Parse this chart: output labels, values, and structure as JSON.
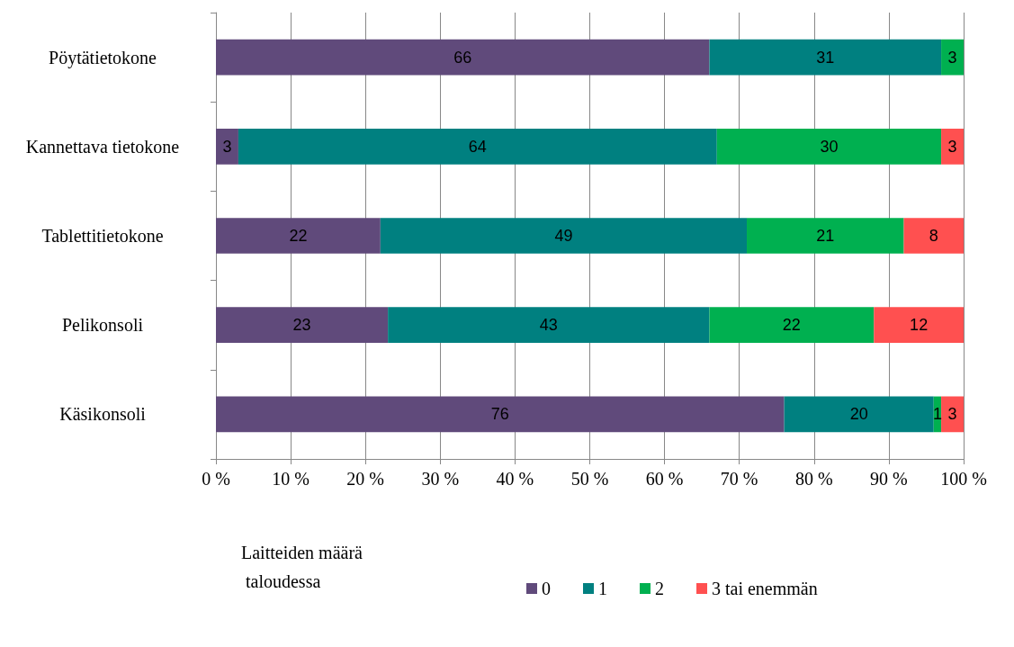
{
  "chart_data": {
    "type": "bar",
    "orientation": "horizontal",
    "stacked": true,
    "categories": [
      "Pöytätietokone",
      "Kannettava tietokone",
      "Tablettitietokone",
      "Pelikonsoli",
      "Käsikonsoli"
    ],
    "series": [
      {
        "name": "0",
        "color": "#604a7b",
        "values": [
          66,
          3,
          22,
          23,
          76
        ]
      },
      {
        "name": "1",
        "color": "#008080",
        "values": [
          31,
          64,
          49,
          43,
          20
        ]
      },
      {
        "name": "2",
        "color": "#00b050",
        "values": [
          3,
          30,
          21,
          22,
          1
        ]
      },
      {
        "name": "3 tai enemmän",
        "color": "#ff5050",
        "values": [
          null,
          3,
          8,
          12,
          3
        ]
      }
    ],
    "xlim": [
      0,
      100
    ],
    "xticks": [
      {
        "value": 0,
        "label": "0 %"
      },
      {
        "value": 10,
        "label": "10 %"
      },
      {
        "value": 20,
        "label": "20 %"
      },
      {
        "value": 30,
        "label": "30 %"
      },
      {
        "value": 40,
        "label": "40 %"
      },
      {
        "value": 50,
        "label": "50 %"
      },
      {
        "value": 60,
        "label": "60 %"
      },
      {
        "value": 70,
        "label": "70 %"
      },
      {
        "value": 80,
        "label": "80 %"
      },
      {
        "value": 90,
        "label": "90 %"
      },
      {
        "value": 100,
        "label": "100 %"
      }
    ],
    "legend_title": "Laitteiden määrä taloudessa",
    "legend": "bottom",
    "grid": "x",
    "data_labels": true
  }
}
